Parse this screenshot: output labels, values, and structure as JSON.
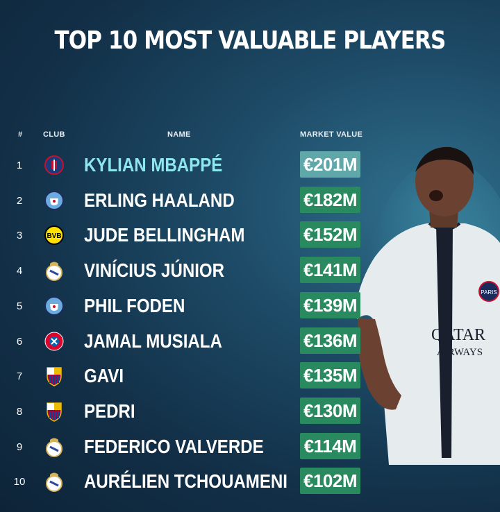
{
  "title": "TOP 10 MOST VALUABLE PLAYERS",
  "headers": {
    "num": "#",
    "club": "CLUB",
    "name": "NAME",
    "market_value": "MARKET VALUE"
  },
  "player_photo": {
    "shirt_sponsor": "QATAR AIRWAYS",
    "badge": "PARIS"
  },
  "rows": [
    {
      "rank": "1",
      "club": "PSG",
      "name": "KYLIAN MBAPPÉ",
      "value": "€201M"
    },
    {
      "rank": "2",
      "club": "Manchester City",
      "name": "ERLING HAALAND",
      "value": "€182M"
    },
    {
      "rank": "3",
      "club": "Borussia Dortmund",
      "name": "JUDE BELLINGHAM",
      "value": "€152M"
    },
    {
      "rank": "4",
      "club": "Real Madrid",
      "name": "VINÍCIUS JÚNIOR",
      "value": "€141M"
    },
    {
      "rank": "5",
      "club": "Manchester City",
      "name": "PHIL FODEN",
      "value": "€139M"
    },
    {
      "rank": "6",
      "club": "Bayern München",
      "name": "JAMAL MUSIALA",
      "value": "€136M"
    },
    {
      "rank": "7",
      "club": "FC Barcelona",
      "name": "GAVI",
      "value": "€135M"
    },
    {
      "rank": "8",
      "club": "FC Barcelona",
      "name": "PEDRI",
      "value": "€130M"
    },
    {
      "rank": "9",
      "club": "Real Madrid",
      "name": "FEDERICO VALVERDE",
      "value": "€114M"
    },
    {
      "rank": "10",
      "club": "Real Madrid",
      "name": "AURÉLIEN TCHOUAMENI",
      "value": "€102M"
    }
  ],
  "colors": {
    "value_bg": "#2a8a5f",
    "highlight_value_bg": "#5fa7a8",
    "highlight_name": "#8ee7ee"
  }
}
